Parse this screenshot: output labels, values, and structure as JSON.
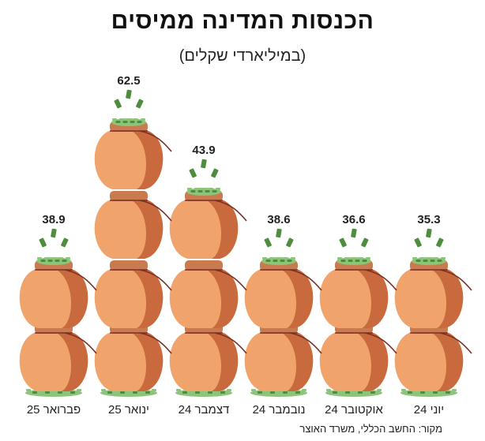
{
  "title": "הכנסות המדינה ממיסים",
  "subtitle": "(במיליארדי שקלים)",
  "source": "מקור: החשב הכללי, משרד האוצר",
  "colors": {
    "bag_light": "#F0A36B",
    "bag_dark": "#C8693E",
    "neck": "#C97A4E",
    "string": "#7A2E22",
    "money": "#8CC47A",
    "money_dark": "#4E8C3E"
  },
  "chart_data": {
    "type": "bar",
    "categories": [
      "יוני 24",
      "אוקטובר 24",
      "נובמבר 24",
      "דצמבר 24",
      "ינואר 25",
      "פברואר 25"
    ],
    "values": [
      35.3,
      36.6,
      38.6,
      43.9,
      62.5,
      38.9
    ],
    "value_labels": [
      "35.3",
      "36.6",
      "38.6",
      "43.9",
      "62.5",
      "38.9"
    ],
    "bags": [
      2,
      2,
      2,
      3,
      4,
      2
    ],
    "unit": "מיליארדי שקלים"
  }
}
